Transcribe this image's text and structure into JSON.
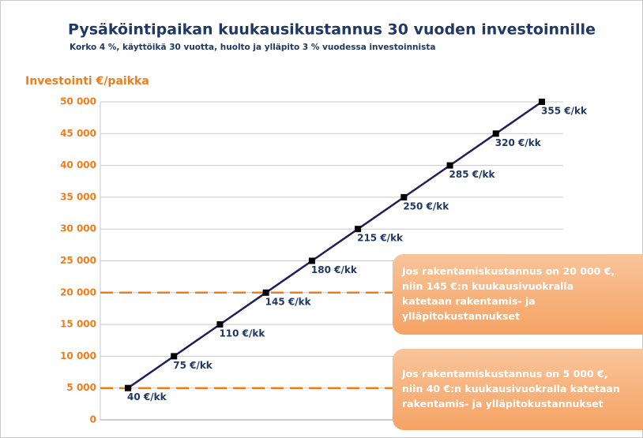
{
  "chart_data": {
    "type": "line",
    "title": "Pysäköintipaikan kuukausikustannus 30 vuoden investoinnille",
    "subtitle": "Korko 4 %, käyttöikä 30 vuotta, huolto ja ylläpito 3 % vuodessa investoinnista",
    "y_label": "Investointi €/paikka",
    "series": [
      {
        "name": null,
        "color": "#1f1f5c",
        "values": [
          5000,
          10000,
          15000,
          20000,
          25000,
          30000,
          35000,
          40000,
          45000,
          50000
        ],
        "value_labels": [
          "40 €/kk",
          "75 €/kk",
          "110 €/kk",
          "145 €/kk",
          "180 €/kk",
          "215 €/kk",
          "250 €/kk",
          "285 €/kk",
          "320 €/kk",
          "355 €/kk"
        ]
      }
    ],
    "ylim": [
      0,
      50000
    ],
    "yticks": [
      0,
      {
        "value": 5000,
        "label": "5 000"
      },
      {
        "value": 10000,
        "label": "10 000"
      },
      {
        "value": 15000,
        "label": "15 000"
      },
      {
        "value": 20000,
        "label": "20 000"
      },
      {
        "value": 25000,
        "label": "25 000"
      },
      {
        "value": 30000,
        "label": "30 000"
      },
      {
        "value": 35000,
        "label": "35 000"
      },
      {
        "value": 40000,
        "label": "40 000"
      },
      {
        "value": 45000,
        "label": "45 000"
      },
      {
        "value": 50000,
        "label": "50 000"
      }
    ],
    "grid": true,
    "reference_lines": [
      {
        "value": 20000,
        "color": "#f07c1a"
      },
      {
        "value": 5000,
        "color": "#f07c1a"
      }
    ],
    "annotations": [
      {
        "lines": [
          "Jos rakentamiskustannus on  20 000 €,",
          "niin 145 €:n kuukausivuokralla",
          "katetaan rakentamis- ja",
          "ylläpitokustannukset"
        ]
      },
      {
        "lines": [
          "Jos rakentamiskustannus on  5 000 €,",
          "niin 40 €:n kuukausivuokralla katetaan",
          "rakentamis- ja ylläpitokustannukset"
        ]
      }
    ]
  }
}
